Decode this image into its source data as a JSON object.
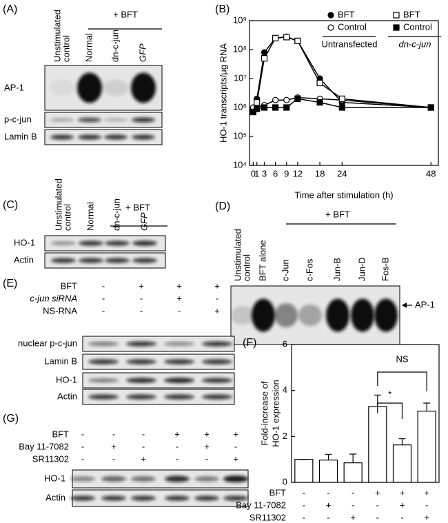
{
  "panels": {
    "A": {
      "label": "(A)",
      "group": "+ BFT",
      "lanes": [
        [
          "Unstimulated",
          "control"
        ],
        "Normal",
        "dn-c-jun",
        "GFP"
      ],
      "rows": [
        "AP-1",
        "p-c-jun",
        "Lamin B"
      ]
    },
    "C": {
      "label": "(C)",
      "group": "+ BFT",
      "lanes": [
        [
          "Unstimulated",
          "control"
        ],
        "Normal",
        "dn-c-jun",
        "GFP"
      ],
      "rows": [
        "HO-1",
        "Actin"
      ]
    },
    "D": {
      "label": "(D)",
      "group": "+ BFT",
      "lanes": [
        [
          "Unstimulated",
          "control"
        ],
        "BFT alone",
        "c-Jun",
        "c-Fos",
        "Jun-B",
        "Jun-D",
        "Fos-B"
      ],
      "arrow": "AP-1"
    },
    "E": {
      "label": "(E)",
      "conditions": [
        {
          "label": "BFT",
          "signs": [
            "-",
            "+",
            "+",
            "+"
          ]
        },
        {
          "label": "c-jun siRNA",
          "signs": [
            "-",
            "-",
            "+",
            "-"
          ]
        },
        {
          "label": "NS-RNA",
          "signs": [
            "-",
            "-",
            "-",
            "+"
          ]
        }
      ],
      "rows": [
        "nuclear p-c-jun",
        "Lamin B",
        "HO-1",
        "Actin"
      ]
    },
    "G": {
      "label": "(G)",
      "conditions": [
        {
          "label": "BFT",
          "signs": [
            "-",
            "-",
            "-",
            "+",
            "+",
            "+"
          ]
        },
        {
          "label": "Bay 11-7082",
          "signs": [
            "-",
            "+",
            "-",
            "-",
            "+",
            "-"
          ]
        },
        {
          "label": "SR11302",
          "signs": [
            "-",
            "-",
            "+",
            "-",
            "-",
            "+"
          ]
        }
      ],
      "rows": [
        "HO-1",
        "Actin"
      ]
    }
  },
  "chart_data": [
    {
      "type": "line",
      "label": "(B)",
      "ylabel": "HO-1 transcripts/μg RNA",
      "xlabel": "Time after stimulation (h)",
      "x": [
        0,
        1,
        3,
        6,
        9,
        12,
        18,
        24,
        48
      ],
      "xlim": [
        -1,
        50
      ],
      "xticks": [
        0,
        1,
        3,
        6,
        9,
        12,
        18,
        24,
        48
      ],
      "ylim": [
        10000,
        1000000000
      ],
      "log_y": true,
      "yticks": [
        {
          "value": 10000,
          "label": "10⁴"
        },
        {
          "value": 100000,
          "label": "10⁵"
        },
        {
          "value": 1000000,
          "label": "10⁶"
        },
        {
          "value": 10000000,
          "label": "10⁷"
        },
        {
          "value": 100000000,
          "label": "10⁸"
        },
        {
          "value": 1000000000,
          "label": "10⁹"
        }
      ],
      "series": [
        {
          "name": "BFT",
          "group": "Untransfected",
          "marker": "filled-circle",
          "color": "#000000",
          "values": [
            900000,
            2000000,
            80000000,
            250000000,
            280000000,
            200000000,
            10000000,
            1500000,
            1000000
          ]
        },
        {
          "name": "Control",
          "group": "Untransfected",
          "marker": "open-circle",
          "color": "#000000",
          "values": [
            1000000,
            1000000,
            1200000,
            1800000,
            1800000,
            2200000,
            2000000,
            1800000,
            1000000
          ]
        },
        {
          "name": "BFT",
          "group": "dn-c-jun",
          "marker": "open-square",
          "color": "#000000",
          "values": [
            700000,
            1500000,
            50000000,
            250000000,
            270000000,
            200000000,
            7000000,
            2000000,
            1000000
          ]
        },
        {
          "name": "Control",
          "group": "dn-c-jun",
          "marker": "filled-square",
          "color": "#000000",
          "values": [
            700000,
            900000,
            1000000,
            1000000,
            1000000,
            2000000,
            1500000,
            1000000,
            1000000
          ]
        }
      ]
    },
    {
      "type": "bar",
      "label": "(F)",
      "ylabel": [
        "Fold-increase of",
        "HO-1 expression"
      ],
      "values": [
        1,
        0.97,
        0.85,
        3.3,
        1.63,
        3.1
      ],
      "errors": [
        0,
        0.25,
        0.38,
        0.5,
        0.27,
        0.35
      ],
      "color": "#ffffff",
      "ylim": [
        0,
        6
      ],
      "yticks": [
        0,
        2,
        4,
        6
      ],
      "conditions": [
        {
          "label": "BFT",
          "signs": [
            "-",
            "-",
            "-",
            "+",
            "+",
            "+"
          ]
        },
        {
          "label": "Bay 11-7082",
          "signs": [
            "-",
            "+",
            "-",
            "-",
            "+",
            "-"
          ]
        },
        {
          "label": "SR11302",
          "signs": [
            "-",
            "-",
            "+",
            "-",
            "-",
            "+"
          ]
        }
      ],
      "annotations": [
        "NS",
        "*"
      ]
    }
  ]
}
